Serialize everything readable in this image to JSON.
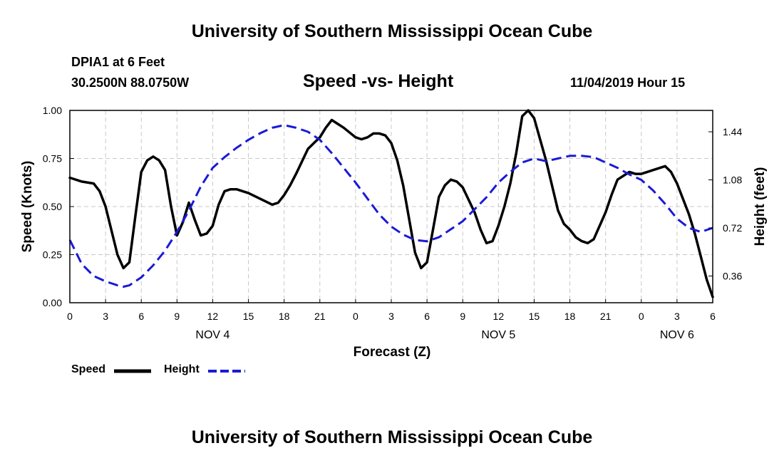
{
  "header": {
    "title_top": "University of Southern Mississippi Ocean Cube",
    "title_bottom": "University of Southern Mississippi Ocean Cube",
    "station": "DPIA1 at 6 Feet",
    "coordinates": "30.2500N 88.0750W",
    "chart_title": "Speed -vs- Height",
    "datetime": "11/04/2019 Hour 15"
  },
  "legend": {
    "speed_label": "Speed",
    "height_label": "Height",
    "speed_color": "#000000",
    "height_color": "#1a1ad6"
  },
  "chart_data": {
    "type": "line",
    "title": "Speed -vs- Height",
    "xlabel": "Forecast (Z)",
    "ylabel": "Speed (Knots)",
    "y2label": "Height (feet)",
    "xlim": [
      0,
      54
    ],
    "ylim": [
      0,
      1
    ],
    "y2lim": [
      0.16,
      1.6
    ],
    "grid": true,
    "x_ticks": [
      0,
      3,
      6,
      9,
      12,
      15,
      18,
      21,
      24,
      27,
      30,
      33,
      36,
      39,
      42,
      45,
      48,
      51,
      54
    ],
    "x_tick_labels": [
      "0",
      "3",
      "6",
      "9",
      "12",
      "15",
      "18",
      "21",
      "0",
      "3",
      "6",
      "9",
      "12",
      "15",
      "18",
      "21",
      "0",
      "3",
      "6"
    ],
    "date_labels": [
      {
        "x": 12,
        "label": "NOV 4"
      },
      {
        "x": 36,
        "label": "NOV 5"
      },
      {
        "x": 51,
        "label": "NOV 6"
      }
    ],
    "y_ticks": [
      0,
      0.25,
      0.5,
      0.75,
      1.0
    ],
    "y_tick_labels": [
      "0.00",
      "0.25",
      "0.50",
      "0.75",
      "1.00"
    ],
    "y2_ticks": [
      0.36,
      0.72,
      1.08,
      1.44
    ],
    "y2_tick_labels": [
      "0.36",
      "0.72",
      "1.08",
      "1.44"
    ],
    "series": [
      {
        "name": "Speed",
        "axis": "left",
        "style": "solid",
        "color": "#000000",
        "x": [
          0,
          1,
          2,
          2.5,
          3,
          4,
          4.5,
          5,
          5.5,
          6,
          6.5,
          7,
          7.5,
          8,
          8.5,
          9,
          9.5,
          10,
          10.5,
          11,
          11.5,
          12,
          12.5,
          13,
          13.5,
          14,
          15,
          16,
          17,
          17.5,
          18,
          18.5,
          19,
          20,
          20.5,
          21,
          21.5,
          22,
          22.5,
          23,
          24,
          24.5,
          25,
          25.5,
          26,
          26.5,
          27,
          27.5,
          28,
          29,
          29.5,
          30,
          30.5,
          31,
          31.5,
          32,
          32.5,
          33,
          34,
          34.5,
          35,
          35.5,
          36,
          36.5,
          37,
          37.5,
          38,
          38.5,
          39,
          40,
          41,
          41.5,
          42,
          42.5,
          43,
          43.5,
          44,
          45,
          45.5,
          46,
          47,
          47.5,
          48,
          48.5,
          49,
          50,
          50.5,
          51,
          52,
          52.5,
          53,
          53.5,
          54
        ],
        "values": [
          0.65,
          0.63,
          0.62,
          0.58,
          0.5,
          0.25,
          0.18,
          0.21,
          0.45,
          0.68,
          0.74,
          0.76,
          0.74,
          0.69,
          0.5,
          0.35,
          0.42,
          0.52,
          0.43,
          0.35,
          0.36,
          0.4,
          0.51,
          0.58,
          0.59,
          0.59,
          0.57,
          0.54,
          0.51,
          0.52,
          0.56,
          0.61,
          0.67,
          0.8,
          0.83,
          0.86,
          0.91,
          0.95,
          0.93,
          0.91,
          0.86,
          0.85,
          0.86,
          0.88,
          0.88,
          0.87,
          0.83,
          0.74,
          0.61,
          0.26,
          0.18,
          0.21,
          0.38,
          0.55,
          0.61,
          0.64,
          0.63,
          0.6,
          0.47,
          0.38,
          0.31,
          0.32,
          0.4,
          0.5,
          0.62,
          0.78,
          0.97,
          1.0,
          0.96,
          0.74,
          0.48,
          0.41,
          0.38,
          0.34,
          0.32,
          0.31,
          0.33,
          0.47,
          0.56,
          0.64,
          0.68,
          0.67,
          0.67,
          0.68,
          0.69,
          0.71,
          0.68,
          0.62,
          0.46,
          0.36,
          0.24,
          0.12,
          0.03
        ]
      },
      {
        "name": "Height",
        "axis": "right",
        "style": "dashed",
        "color": "#1a1ad6",
        "x": [
          0,
          1,
          2,
          3,
          4,
          4.5,
          5,
          6,
          7,
          8,
          9,
          10,
          11,
          12,
          13,
          14,
          15,
          16,
          17,
          18,
          19,
          20,
          21,
          22,
          23,
          24,
          25,
          26,
          27,
          28,
          29,
          30,
          31,
          32,
          33,
          34,
          35,
          36,
          37,
          38,
          39,
          40,
          41,
          42,
          43,
          44,
          45,
          46,
          47,
          48,
          49,
          50,
          51,
          52,
          53,
          54
        ],
        "values": [
          0.63,
          0.45,
          0.36,
          0.32,
          0.29,
          0.28,
          0.29,
          0.35,
          0.44,
          0.55,
          0.69,
          0.85,
          1.03,
          1.17,
          1.25,
          1.32,
          1.38,
          1.43,
          1.47,
          1.49,
          1.47,
          1.44,
          1.38,
          1.28,
          1.17,
          1.06,
          0.94,
          0.82,
          0.73,
          0.67,
          0.63,
          0.62,
          0.65,
          0.71,
          0.77,
          0.86,
          0.95,
          1.06,
          1.14,
          1.21,
          1.24,
          1.22,
          1.24,
          1.26,
          1.26,
          1.25,
          1.21,
          1.17,
          1.12,
          1.08,
          1.0,
          0.9,
          0.79,
          0.72,
          0.69,
          0.72
        ]
      }
    ]
  }
}
